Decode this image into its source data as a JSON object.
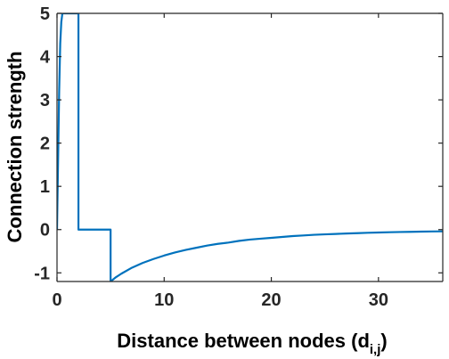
{
  "chart_data": {
    "type": "line",
    "xlabel": "Distance between nodes (d",
    "xlabel_subscript": "i,j",
    "xlabel_suffix": ")",
    "ylabel": "Connection strength",
    "xlim": [
      0,
      36
    ],
    "ylim": [
      -1.2,
      5
    ],
    "xticks": [
      0,
      10,
      20,
      30
    ],
    "yticks": [
      -1,
      0,
      1,
      2,
      3,
      4,
      5
    ],
    "grid": false,
    "series": [
      {
        "color": "#0072BD",
        "x": [
          0,
          0.1,
          0.2,
          0.3,
          0.4,
          0.5,
          0.6,
          2.0,
          2.0,
          5.0,
          5.0,
          5.5,
          6,
          7,
          8,
          9,
          10,
          11,
          12,
          13,
          14,
          15,
          16,
          17,
          18,
          19,
          20,
          21,
          22,
          23,
          24,
          25,
          26,
          27,
          28,
          29,
          30,
          31,
          32,
          33,
          34,
          35,
          36
        ],
        "y": [
          0,
          1.6,
          3.2,
          4.3,
          4.8,
          5,
          5,
          5,
          0,
          0,
          -1.2,
          -1.1,
          -1.02,
          -0.88,
          -0.77,
          -0.68,
          -0.6,
          -0.53,
          -0.47,
          -0.42,
          -0.37,
          -0.33,
          -0.3,
          -0.26,
          -0.23,
          -0.21,
          -0.19,
          -0.17,
          -0.15,
          -0.135,
          -0.12,
          -0.11,
          -0.1,
          -0.09,
          -0.082,
          -0.074,
          -0.067,
          -0.061,
          -0.056,
          -0.051,
          -0.047,
          -0.043,
          -0.04
        ]
      }
    ]
  }
}
